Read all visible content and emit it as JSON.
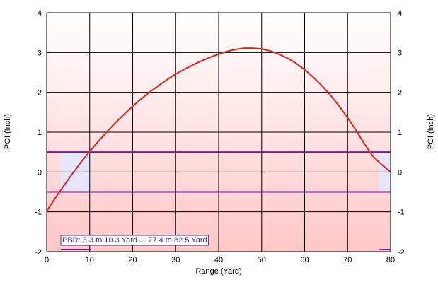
{
  "chart_data": {
    "type": "line",
    "title": "",
    "xlabel": "Range (Yard)",
    "ylabel_left": "POI (Inch)",
    "ylabel_right": "POI (Inch)",
    "xlim": [
      0,
      80
    ],
    "ylim": [
      -2,
      4
    ],
    "x_ticks": [
      0,
      10,
      20,
      30,
      40,
      50,
      60,
      70,
      80
    ],
    "y_ticks": [
      -2,
      -1,
      0,
      1,
      2,
      3,
      4
    ],
    "grid": true,
    "series": [
      {
        "color": "#e8221b",
        "x": [
          0,
          2,
          4,
          6,
          8,
          10,
          12,
          14,
          16,
          18,
          20,
          22,
          24,
          26,
          28,
          30,
          32,
          34,
          36,
          38,
          40,
          42,
          44,
          46,
          48,
          50,
          52,
          54,
          56,
          58,
          60,
          62,
          64,
          66,
          68,
          70,
          72,
          74,
          76,
          78,
          80
        ],
        "y": [
          -0.98,
          -0.65,
          -0.34,
          -0.04,
          0.25,
          0.52,
          0.77,
          1.01,
          1.24,
          1.45,
          1.65,
          1.84,
          2.01,
          2.17,
          2.32,
          2.46,
          2.58,
          2.69,
          2.79,
          2.88,
          2.96,
          3.03,
          3.08,
          3.11,
          3.11,
          3.09,
          3.04,
          2.96,
          2.86,
          2.73,
          2.57,
          2.38,
          2.17,
          1.93,
          1.66,
          1.36,
          1.04,
          0.69,
          0.38,
          0.18,
          0.0
        ]
      }
    ],
    "pbr_band": {
      "lower": -0.5,
      "upper": 0.5
    },
    "pbr_ranges": [
      [
        3.3,
        10.3
      ],
      [
        77.4,
        82.5
      ]
    ],
    "annotation": "PBR: 3.3 to 10.3 Yard ... 77.4 to 82.5 Yard",
    "colors": {
      "background_top": "#ffffff",
      "background_bottom": "#ffc7c7",
      "grid": "#000000",
      "band_lines": "#7b1a8b",
      "band_fill": "#e6e6ff",
      "annotation_text": "#333399",
      "annotation_border": "#333399"
    }
  }
}
